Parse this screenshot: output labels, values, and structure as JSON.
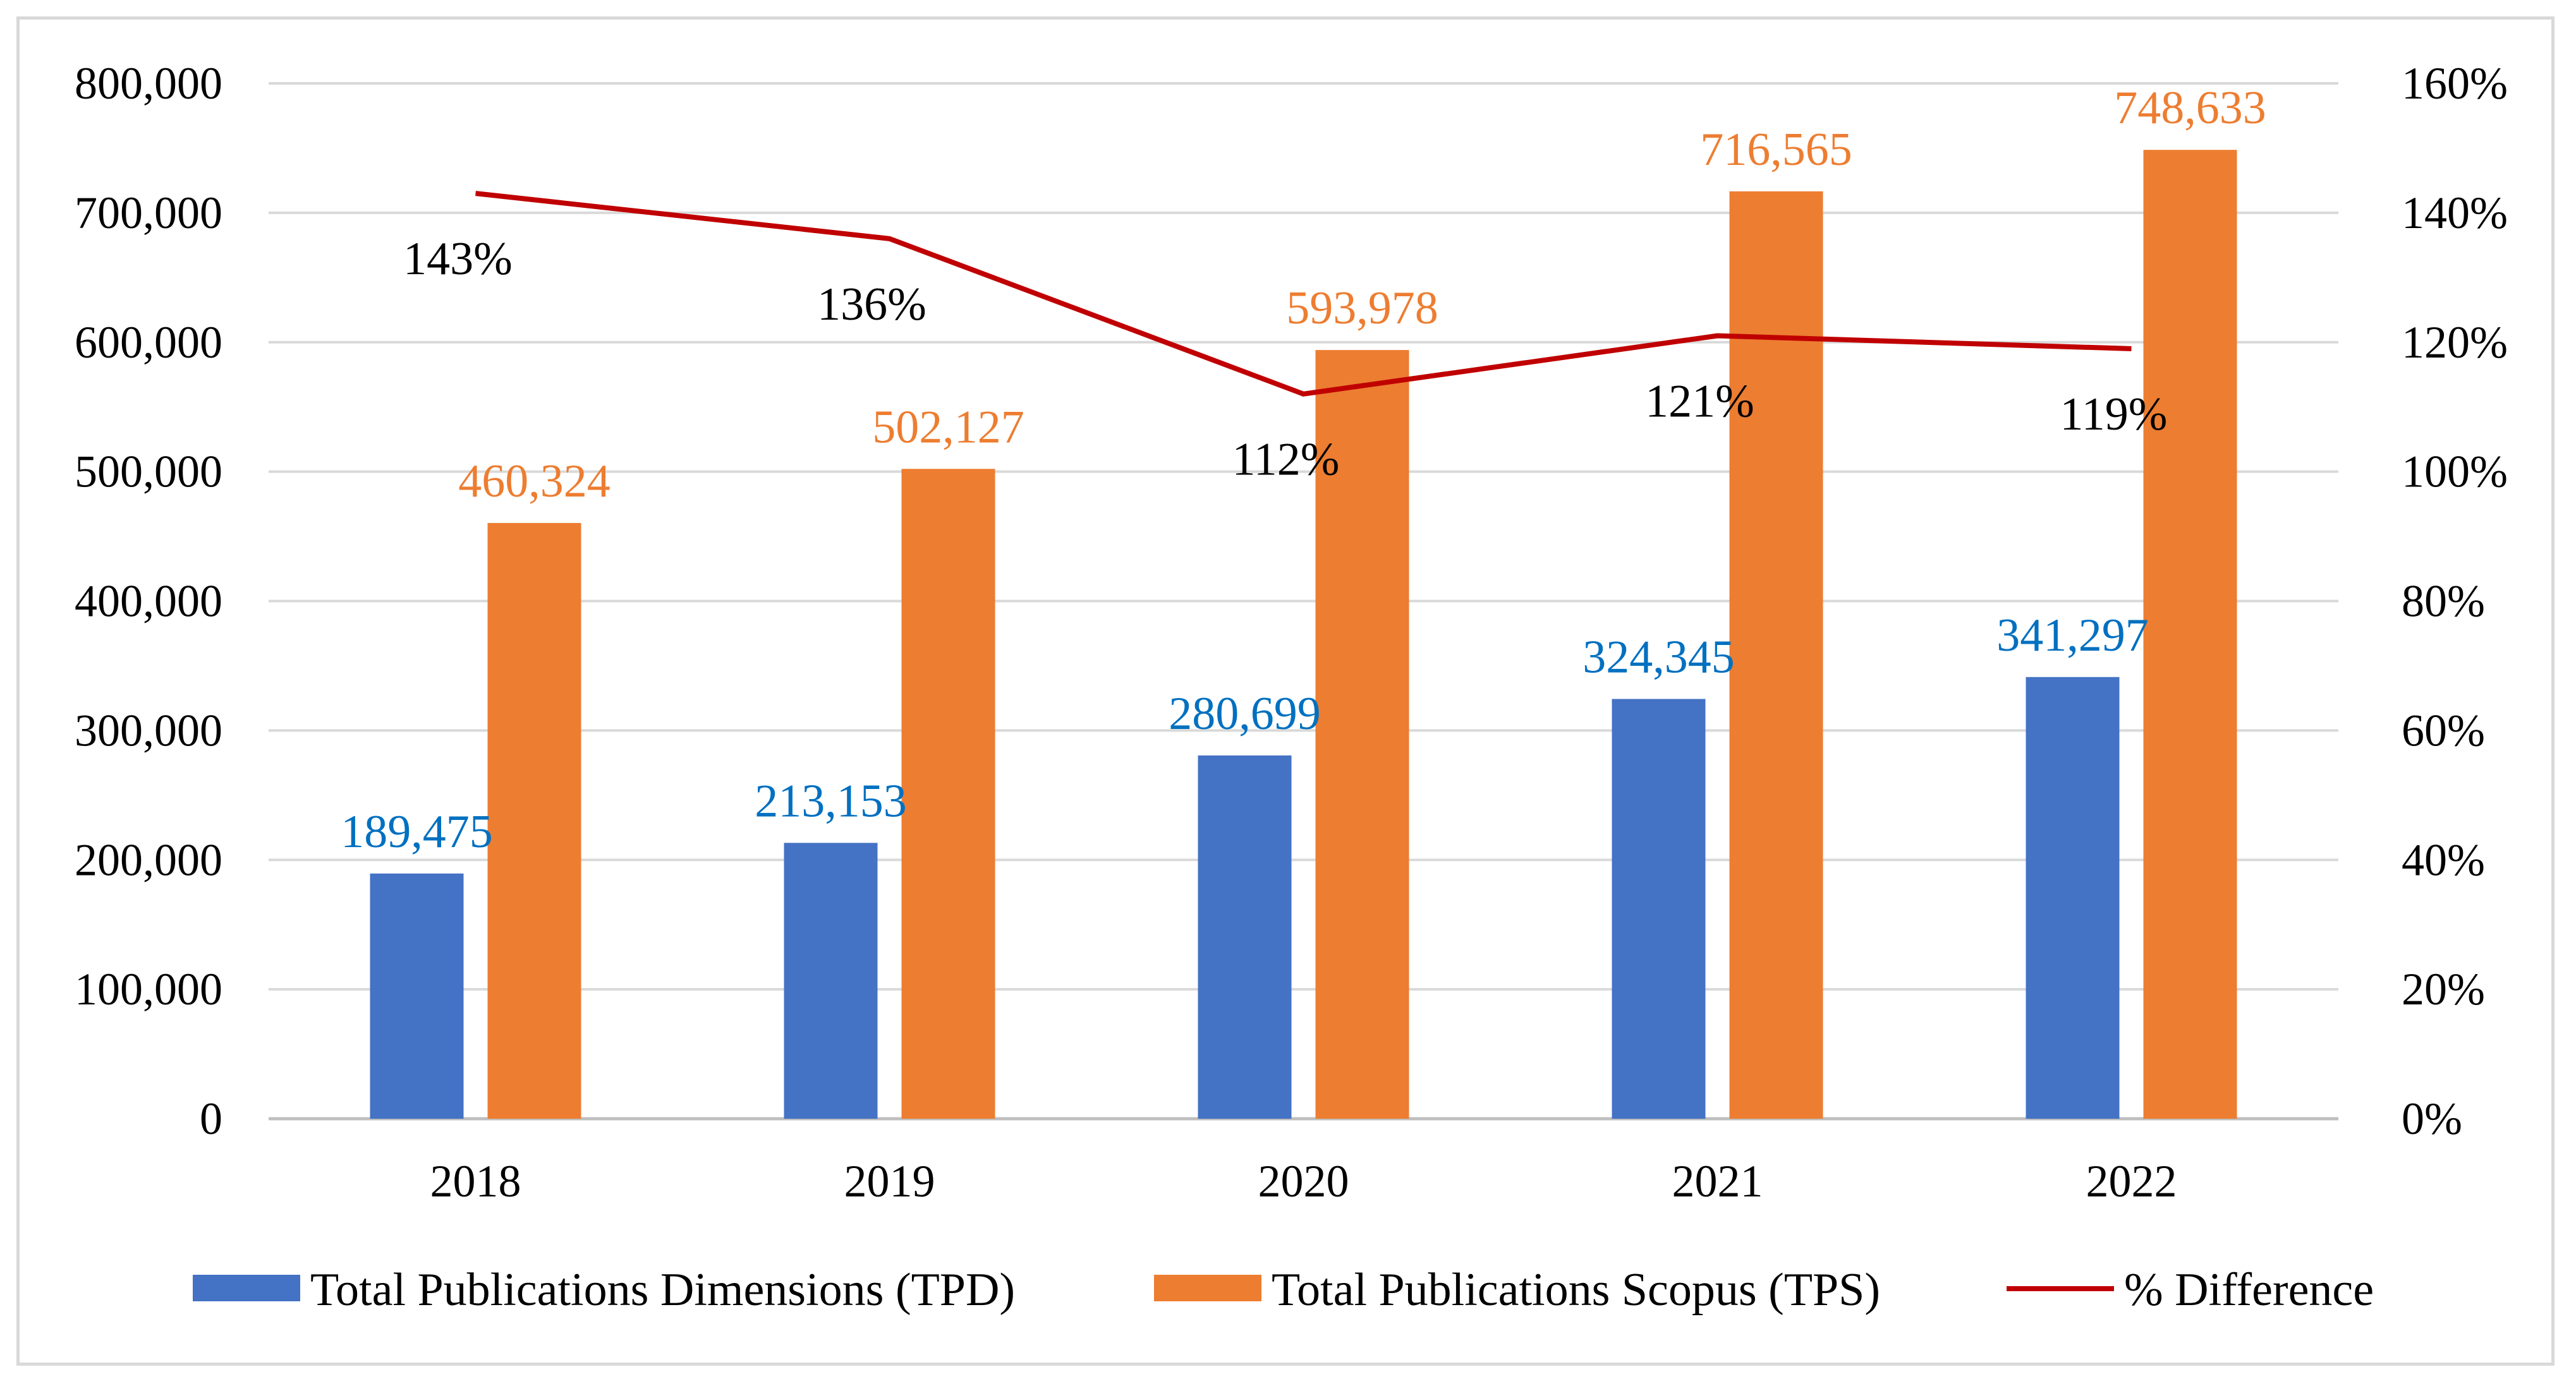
{
  "chart_data": {
    "type": "bar",
    "categories": [
      "2018",
      "2019",
      "2020",
      "2021",
      "2022"
    ],
    "series": [
      {
        "name": "Total Publications Dimensions (TPD)",
        "type": "bar",
        "axis": "left",
        "color": "#4472C4",
        "values": [
          189475,
          213153,
          280699,
          324345,
          341297
        ],
        "labels": [
          "189,475",
          "213,153",
          "280,699",
          "324,345",
          "341,297"
        ]
      },
      {
        "name": "Total Publications Scopus (TPS)",
        "type": "bar",
        "axis": "left",
        "color": "#ED7D31",
        "values": [
          460324,
          502127,
          593978,
          716565,
          748633
        ],
        "labels": [
          "460,324",
          "502,127",
          "593,978",
          "716,565",
          "748,633"
        ]
      },
      {
        "name": "% Difference",
        "type": "line",
        "axis": "right",
        "color": "#C00000",
        "values": [
          143,
          136,
          112,
          121,
          119
        ],
        "labels": [
          "143%",
          "136%",
          "112%",
          "121%",
          "119%"
        ]
      }
    ],
    "y_left": {
      "ylim": [
        0,
        800000
      ],
      "ticks": [
        "0",
        "100,000",
        "200,000",
        "300,000",
        "400,000",
        "500,000",
        "600,000",
        "700,000",
        "800,000"
      ]
    },
    "y_right": {
      "ylim": [
        0,
        160
      ],
      "ticks": [
        "0%",
        "20%",
        "40%",
        "60%",
        "80%",
        "100%",
        "120%",
        "140%",
        "160%"
      ]
    },
    "grid": true,
    "legend": "bottom",
    "title": "",
    "xlabel": "",
    "ylabel": ""
  }
}
